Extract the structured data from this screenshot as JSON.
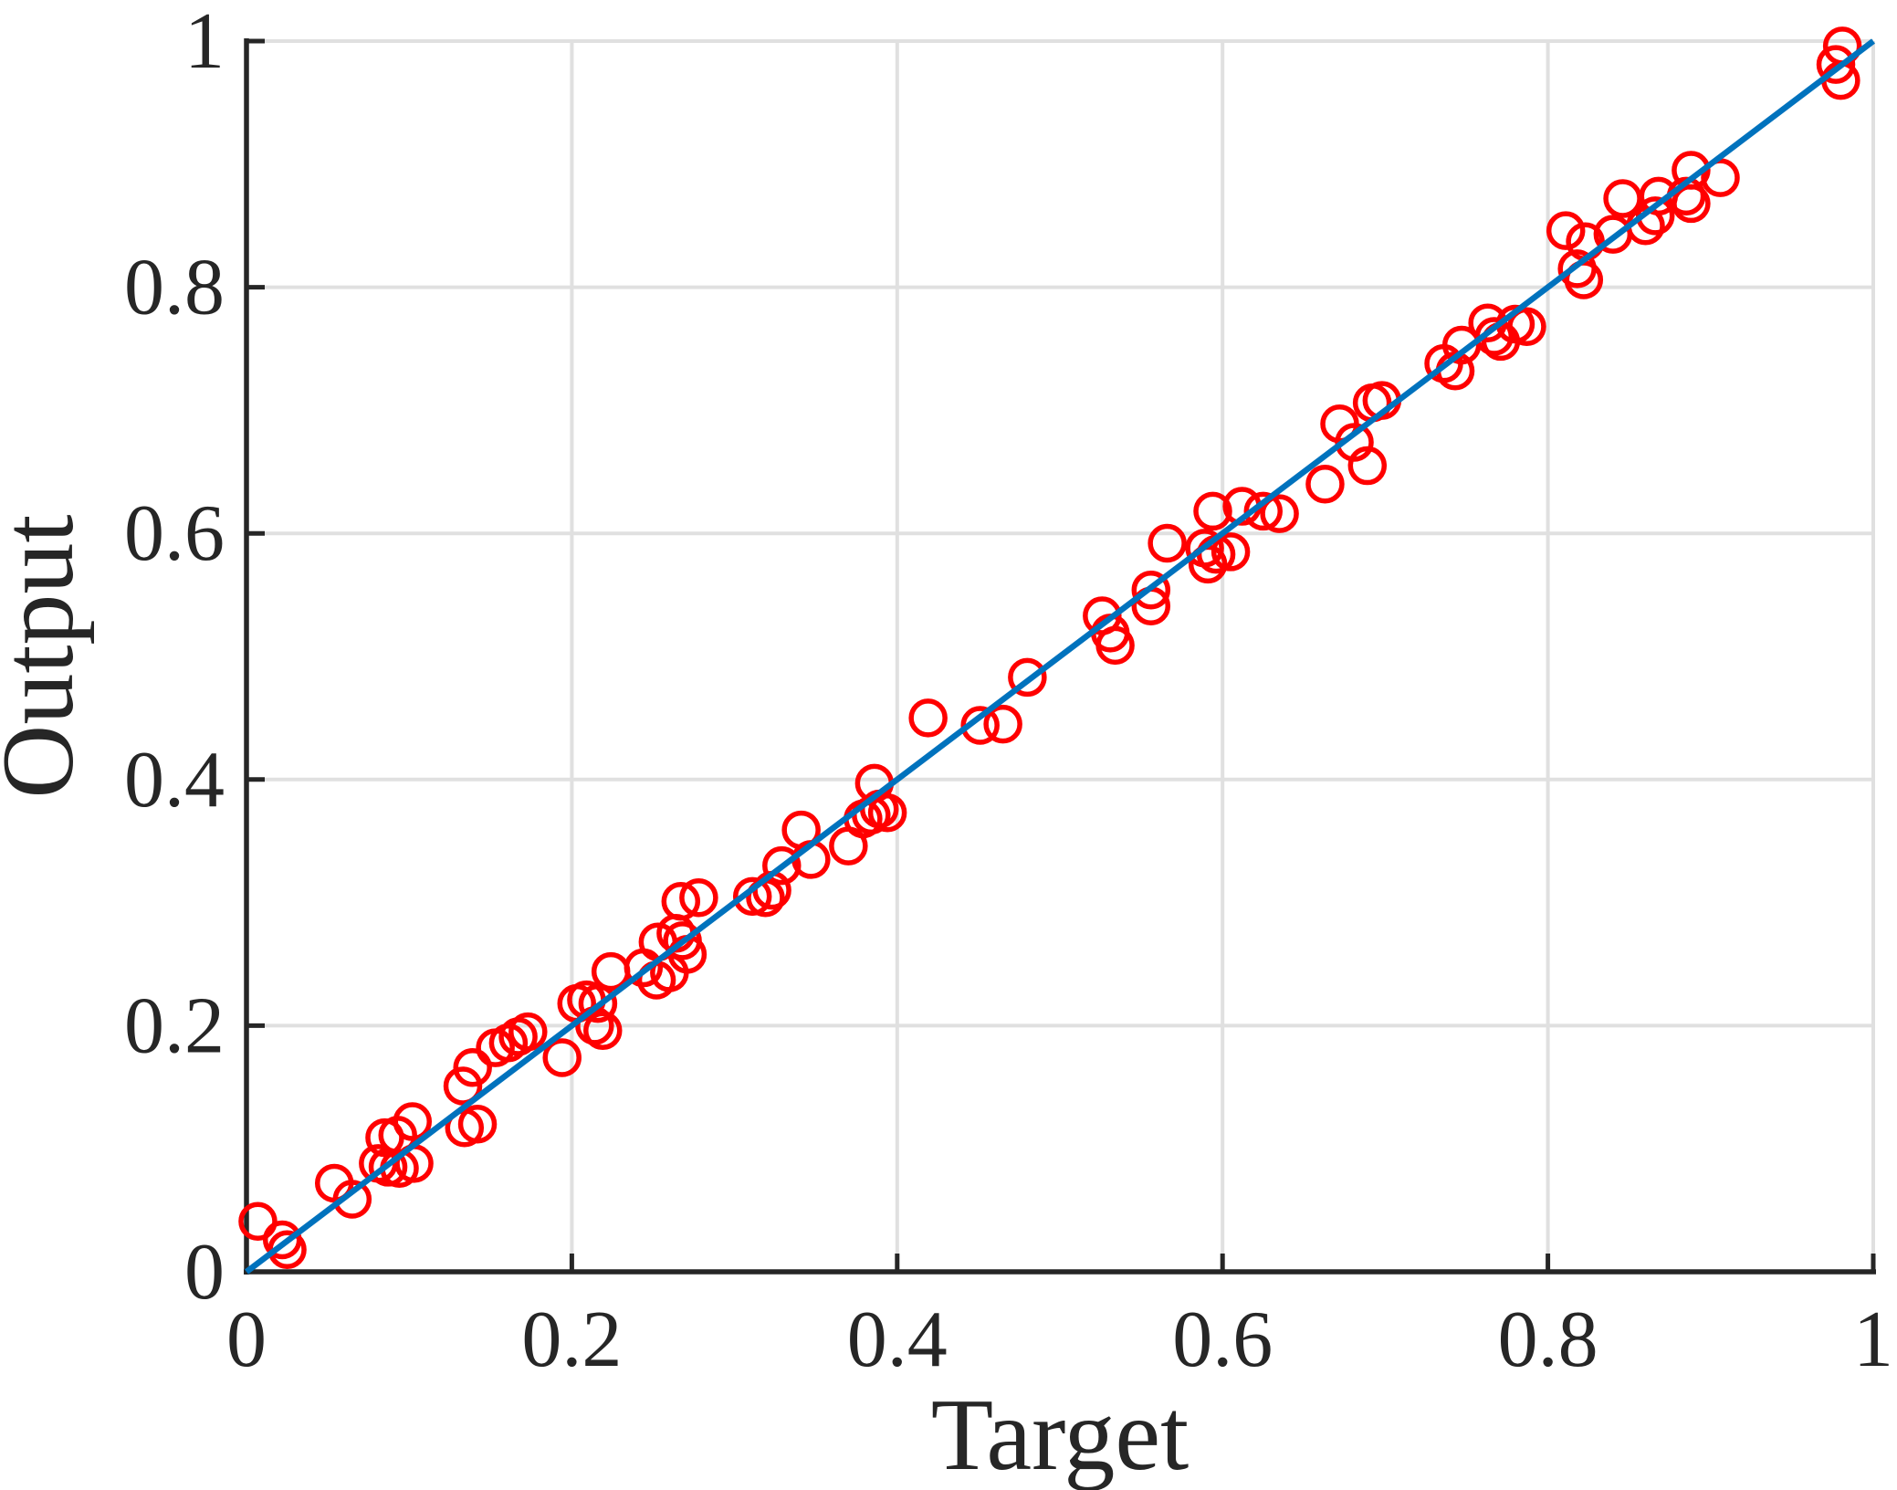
{
  "figure": {
    "background": "#ffffff"
  },
  "chart_data": {
    "type": "scatter",
    "title": "",
    "xlabel": "Target",
    "ylabel": "Output",
    "xlim": [
      0,
      1
    ],
    "ylim": [
      0,
      1
    ],
    "grid": true,
    "legend": "none",
    "x_ticks": [
      0,
      0.2,
      0.4,
      0.6,
      0.8,
      1
    ],
    "y_ticks": [
      0,
      0.2,
      0.4,
      0.6,
      0.8,
      1
    ],
    "x_tick_labels": [
      "0",
      "0.2",
      "0.4",
      "0.6",
      "0.8",
      "1"
    ],
    "y_tick_labels": [
      "0",
      "0.2",
      "0.4",
      "0.6",
      "0.8",
      "1"
    ],
    "colors": {
      "marker": "#FF0000",
      "identity_line": "#0072BD",
      "axis": "#262626",
      "grid": "#E0E0E0",
      "text": "#262626"
    },
    "series": [
      {
        "name": "data-points",
        "type": "scatter",
        "marker": "open-circle",
        "color": "#FF0000",
        "points": [
          [
            0.007,
            0.041
          ],
          [
            0.022,
            0.026
          ],
          [
            0.025,
            0.018
          ],
          [
            0.054,
            0.072
          ],
          [
            0.065,
            0.059
          ],
          [
            0.081,
            0.088
          ],
          [
            0.087,
            0.085
          ],
          [
            0.094,
            0.084
          ],
          [
            0.103,
            0.088
          ],
          [
            0.085,
            0.109
          ],
          [
            0.093,
            0.111
          ],
          [
            0.102,
            0.122
          ],
          [
            0.134,
            0.117
          ],
          [
            0.142,
            0.12
          ],
          [
            0.133,
            0.151
          ],
          [
            0.139,
            0.166
          ],
          [
            0.153,
            0.182
          ],
          [
            0.161,
            0.186
          ],
          [
            0.167,
            0.191
          ],
          [
            0.173,
            0.195
          ],
          [
            0.194,
            0.174
          ],
          [
            0.203,
            0.218
          ],
          [
            0.209,
            0.221
          ],
          [
            0.216,
            0.218
          ],
          [
            0.214,
            0.2
          ],
          [
            0.219,
            0.196
          ],
          [
            0.224,
            0.244
          ],
          [
            0.244,
            0.247
          ],
          [
            0.252,
            0.237
          ],
          [
            0.26,
            0.243
          ],
          [
            0.253,
            0.268
          ],
          [
            0.264,
            0.275
          ],
          [
            0.268,
            0.269
          ],
          [
            0.271,
            0.258
          ],
          [
            0.267,
            0.301
          ],
          [
            0.278,
            0.304
          ],
          [
            0.311,
            0.305
          ],
          [
            0.319,
            0.304
          ],
          [
            0.323,
            0.31
          ],
          [
            0.329,
            0.33
          ],
          [
            0.347,
            0.335
          ],
          [
            0.341,
            0.359
          ],
          [
            0.37,
            0.346
          ],
          [
            0.379,
            0.368
          ],
          [
            0.384,
            0.371
          ],
          [
            0.389,
            0.376
          ],
          [
            0.394,
            0.373
          ],
          [
            0.386,
            0.397
          ],
          [
            0.419,
            0.45
          ],
          [
            0.451,
            0.444
          ],
          [
            0.465,
            0.445
          ],
          [
            0.48,
            0.483
          ],
          [
            0.526,
            0.533
          ],
          [
            0.531,
            0.519
          ],
          [
            0.534,
            0.509
          ],
          [
            0.556,
            0.541
          ],
          [
            0.556,
            0.554
          ],
          [
            0.566,
            0.592
          ],
          [
            0.589,
            0.588
          ],
          [
            0.591,
            0.575
          ],
          [
            0.596,
            0.583
          ],
          [
            0.594,
            0.618
          ],
          [
            0.605,
            0.585
          ],
          [
            0.612,
            0.622
          ],
          [
            0.625,
            0.618
          ],
          [
            0.635,
            0.616
          ],
          [
            0.663,
            0.64
          ],
          [
            0.672,
            0.689
          ],
          [
            0.681,
            0.674
          ],
          [
            0.689,
            0.655
          ],
          [
            0.692,
            0.706
          ],
          [
            0.698,
            0.708
          ],
          [
            0.736,
            0.738
          ],
          [
            0.743,
            0.732
          ],
          [
            0.747,
            0.753
          ],
          [
            0.763,
            0.771
          ],
          [
            0.767,
            0.76
          ],
          [
            0.771,
            0.756
          ],
          [
            0.78,
            0.77
          ],
          [
            0.787,
            0.768
          ],
          [
            0.811,
            0.846
          ],
          [
            0.823,
            0.837
          ],
          [
            0.818,
            0.815
          ],
          [
            0.822,
            0.806
          ],
          [
            0.84,
            0.843
          ],
          [
            0.846,
            0.872
          ],
          [
            0.86,
            0.85
          ],
          [
            0.866,
            0.858
          ],
          [
            0.868,
            0.874
          ],
          [
            0.885,
            0.874
          ],
          [
            0.888,
            0.868
          ],
          [
            0.888,
            0.895
          ],
          [
            0.906,
            0.889
          ],
          [
            0.981,
            0.996
          ],
          [
            0.977,
            0.981
          ],
          [
            0.98,
            0.968
          ]
        ]
      },
      {
        "name": "identity-line",
        "type": "line",
        "color": "#0072BD",
        "points": [
          [
            0,
            0
          ],
          [
            1,
            1
          ]
        ]
      }
    ]
  }
}
